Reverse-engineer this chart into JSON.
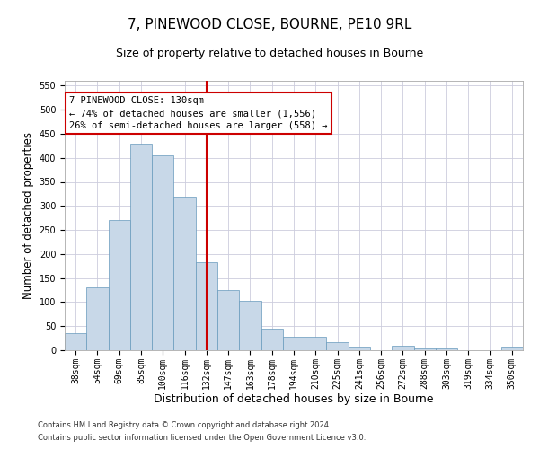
{
  "title": "7, PINEWOOD CLOSE, BOURNE, PE10 9RL",
  "subtitle": "Size of property relative to detached houses in Bourne",
  "xlabel": "Distribution of detached houses by size in Bourne",
  "ylabel": "Number of detached properties",
  "categories": [
    "38sqm",
    "54sqm",
    "69sqm",
    "85sqm",
    "100sqm",
    "116sqm",
    "132sqm",
    "147sqm",
    "163sqm",
    "178sqm",
    "194sqm",
    "210sqm",
    "225sqm",
    "241sqm",
    "256sqm",
    "272sqm",
    "288sqm",
    "303sqm",
    "319sqm",
    "334sqm",
    "350sqm"
  ],
  "values": [
    35,
    130,
    270,
    430,
    405,
    320,
    183,
    125,
    103,
    45,
    28,
    28,
    17,
    7,
    0,
    9,
    3,
    3,
    0,
    0,
    7
  ],
  "bar_color": "#c8d8e8",
  "bar_edge_color": "#6699bb",
  "vline_x_index": 6,
  "vline_color": "#cc0000",
  "annotation_line1": "7 PINEWOOD CLOSE: 130sqm",
  "annotation_line2": "← 74% of detached houses are smaller (1,556)",
  "annotation_line3": "26% of semi-detached houses are larger (558) →",
  "annotation_box_color": "#ffffff",
  "annotation_box_edge_color": "#cc0000",
  "ylim": [
    0,
    560
  ],
  "yticks": [
    0,
    50,
    100,
    150,
    200,
    250,
    300,
    350,
    400,
    450,
    500,
    550
  ],
  "footnote1": "Contains HM Land Registry data © Crown copyright and database right 2024.",
  "footnote2": "Contains public sector information licensed under the Open Government Licence v3.0.",
  "bg_color": "#ffffff",
  "grid_color": "#ccccdd",
  "title_fontsize": 11,
  "subtitle_fontsize": 9,
  "tick_fontsize": 7,
  "ylabel_fontsize": 8.5,
  "xlabel_fontsize": 9,
  "annotation_fontsize": 7.5
}
